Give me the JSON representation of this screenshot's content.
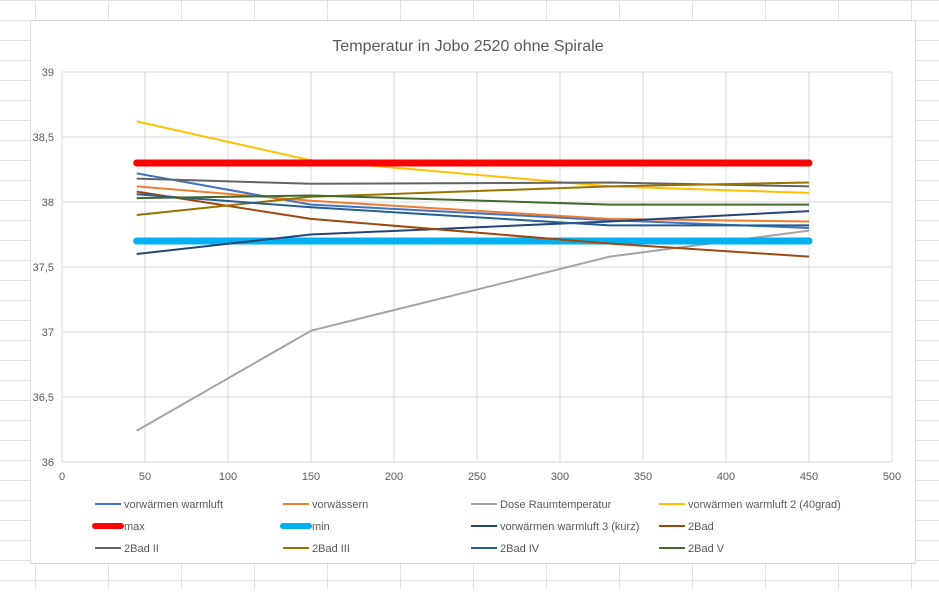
{
  "chart_data": {
    "type": "line",
    "title": "Temperatur in Jobo 2520 ohne Spirale",
    "xlabel": "",
    "ylabel": "",
    "xlim": [
      0,
      500
    ],
    "ylim": [
      36,
      39
    ],
    "x_ticks": [
      "0",
      "50",
      "100",
      "150",
      "200",
      "250",
      "300",
      "350",
      "400",
      "450",
      "500"
    ],
    "y_ticks": [
      "36",
      "36,5",
      "37",
      "37,5",
      "38",
      "38,5",
      "39"
    ],
    "grid": true,
    "legend_position": "bottom",
    "series": [
      {
        "name": "vorwärmen warmluft",
        "color": "#4472C4",
        "width": 2,
        "x": [
          45,
          150,
          330,
          450
        ],
        "y": [
          38.22,
          37.98,
          37.86,
          37.8
        ]
      },
      {
        "name": "vorwässern",
        "color": "#ED7D31",
        "width": 2,
        "x": [
          45,
          150,
          330,
          450
        ],
        "y": [
          38.12,
          38.01,
          37.87,
          37.85
        ]
      },
      {
        "name": "Dose Raumtemperatur",
        "color": "#A5A5A5",
        "width": 2,
        "x": [
          45,
          150,
          330,
          450
        ],
        "y": [
          36.24,
          37.01,
          37.58,
          37.78
        ]
      },
      {
        "name": "vorwärmen warmluft 2 (40grad)",
        "color": "#FFC000",
        "width": 2,
        "x": [
          45,
          150,
          330,
          450
        ],
        "y": [
          38.62,
          38.32,
          38.12,
          38.07
        ]
      },
      {
        "name": "max",
        "color": "#FF0000",
        "width": 7,
        "x": [
          45,
          450
        ],
        "y": [
          38.3,
          38.3
        ]
      },
      {
        "name": "min",
        "color": "#00B0F0",
        "width": 7,
        "x": [
          45,
          450
        ],
        "y": [
          37.7,
          37.7
        ]
      },
      {
        "name": "vorwärmen warmluft 3 (kurz)",
        "color": "#264478",
        "width": 2,
        "x": [
          45,
          150,
          330,
          450
        ],
        "y": [
          37.6,
          37.75,
          37.85,
          37.93
        ]
      },
      {
        "name": "2Bad",
        "color": "#9E480E",
        "width": 2,
        "x": [
          45,
          150,
          330,
          450
        ],
        "y": [
          38.08,
          37.87,
          37.68,
          37.58
        ]
      },
      {
        "name": "2Bad II",
        "color": "#636363",
        "width": 2,
        "x": [
          45,
          150,
          330,
          450
        ],
        "y": [
          38.18,
          38.14,
          38.15,
          38.12
        ]
      },
      {
        "name": "2Bad III",
        "color": "#997300",
        "width": 2,
        "x": [
          45,
          150,
          330,
          450
        ],
        "y": [
          37.9,
          38.04,
          38.12,
          38.15
        ]
      },
      {
        "name": "2Bad IV",
        "color": "#255E91",
        "width": 2,
        "x": [
          45,
          150,
          330,
          450
        ],
        "y": [
          38.06,
          37.96,
          37.82,
          37.82
        ]
      },
      {
        "name": "2Bad V",
        "color": "#43682B",
        "width": 2,
        "x": [
          45,
          150,
          330,
          450
        ],
        "y": [
          38.03,
          38.05,
          37.98,
          37.98
        ]
      }
    ]
  }
}
